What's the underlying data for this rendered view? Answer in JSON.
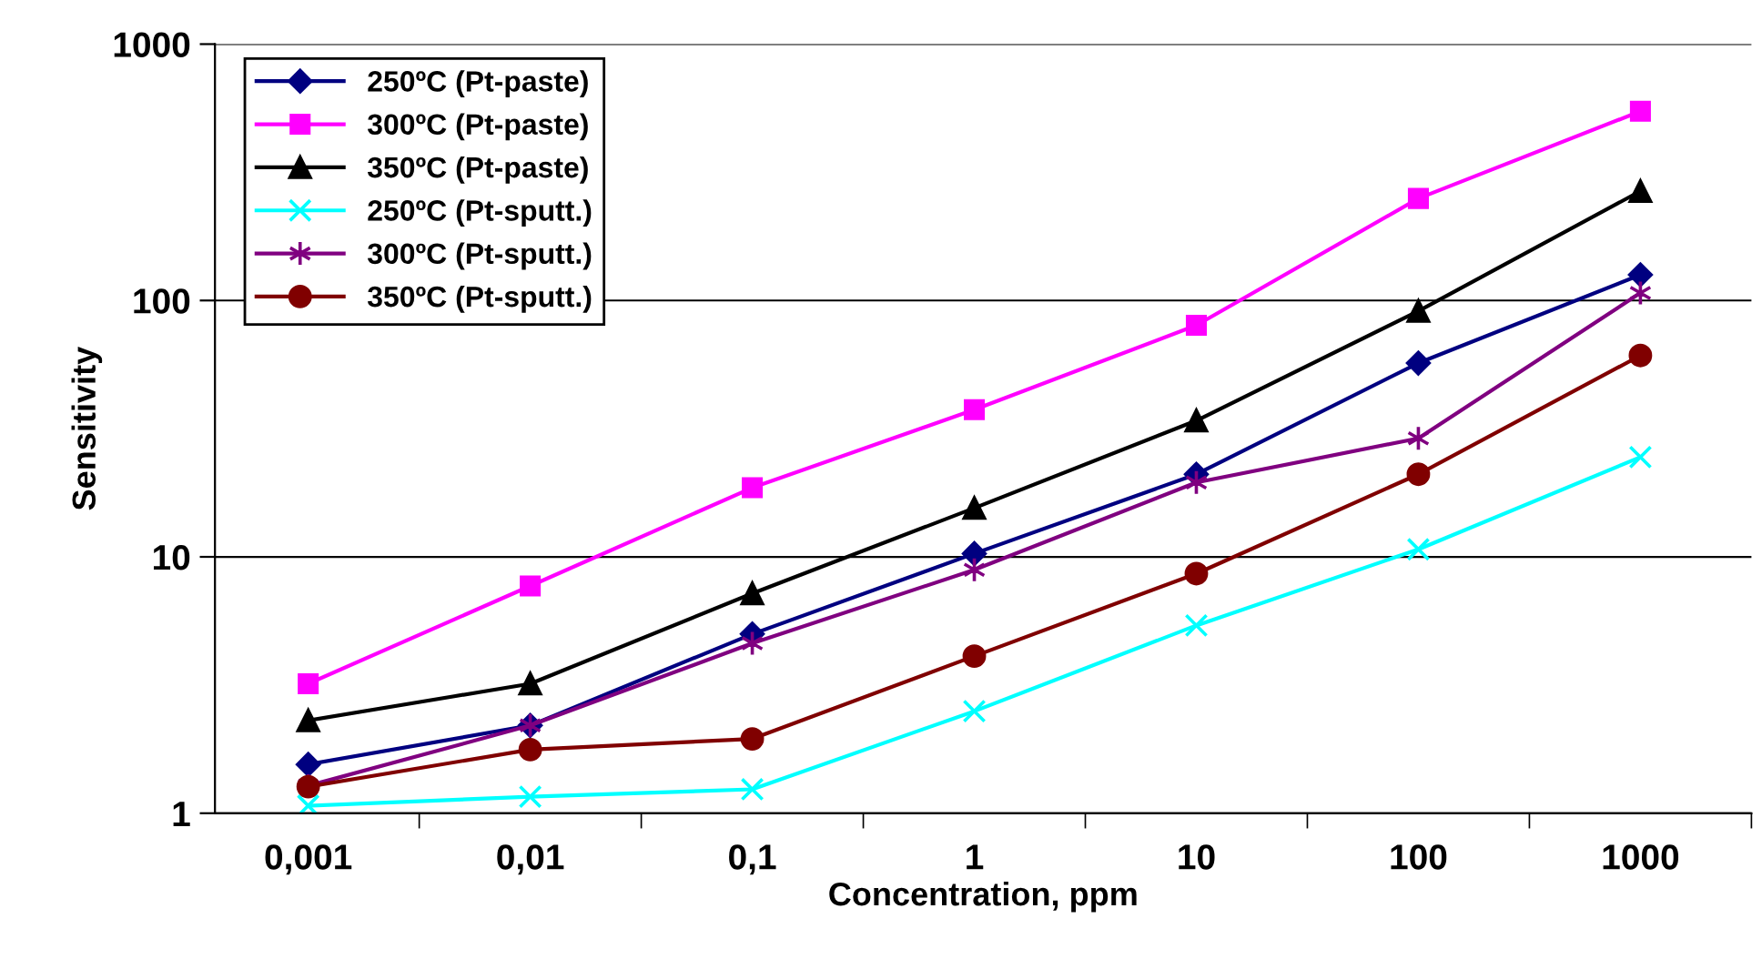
{
  "chart_data": {
    "type": "line",
    "xlabel": "Concentration, ppm",
    "ylabel": "Sensitivity",
    "categories": [
      "0,001",
      "0,01",
      "0,1",
      "1",
      "10",
      "100",
      "1000"
    ],
    "log": "y",
    "ylim": [
      1,
      1000
    ],
    "yticks": [
      1,
      10,
      100,
      1000
    ],
    "grid": "y",
    "legend": "top left",
    "series": [
      {
        "name": "250ºC (Pt-paste)",
        "color": "#000080",
        "marker": "diamond",
        "values": [
          1.55,
          2.2,
          5.0,
          10.3,
          21,
          57,
          126
        ]
      },
      {
        "name": "300ºC (Pt-paste)",
        "color": "#ff00ff",
        "marker": "square",
        "values": [
          3.2,
          7.7,
          18.6,
          37.5,
          80,
          250,
          547
        ]
      },
      {
        "name": "350ºC (Pt-paste)",
        "color": "#000000",
        "marker": "triangle",
        "values": [
          2.3,
          3.2,
          7.2,
          15.5,
          34,
          91,
          267
        ]
      },
      {
        "name": "250ºC (Pt-sputt.)",
        "color": "#00ffff",
        "marker": "cross",
        "values": [
          1.07,
          1.16,
          1.24,
          2.5,
          5.4,
          10.7,
          24.5
        ]
      },
      {
        "name": "300ºC (Pt-sputt.)",
        "color": "#800080",
        "marker": "cross",
        "values": [
          1.28,
          2.2,
          4.6,
          8.9,
          19.5,
          29,
          107
        ]
      },
      {
        "name": "350ºC (Pt-sputt.)",
        "color": "#800000",
        "marker": "circle",
        "values": [
          1.27,
          1.77,
          1.95,
          4.1,
          8.6,
          21,
          61
        ]
      }
    ]
  }
}
